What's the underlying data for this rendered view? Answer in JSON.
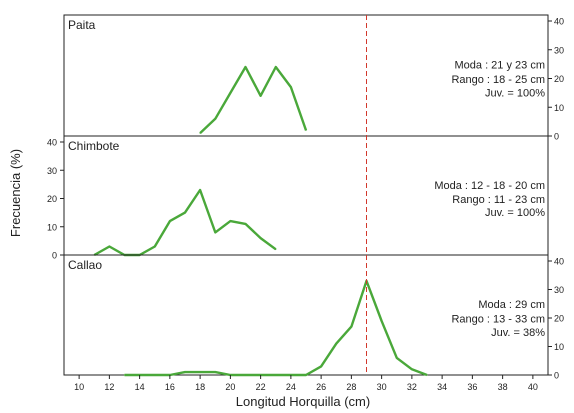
{
  "chart_data": [
    {
      "type": "line",
      "panel": "Paita",
      "x": [
        18,
        19,
        20,
        21,
        22,
        23,
        24,
        25
      ],
      "y": [
        1,
        6,
        15,
        24,
        14,
        24,
        17,
        2
      ],
      "annotations": [
        "Moda : 21 y 23 cm",
        "Rango : 18 - 25 cm",
        "Juv. = 100%"
      ],
      "yticks": [
        0,
        10,
        20,
        30,
        40
      ],
      "ylim": [
        0,
        40
      ],
      "y_axis_side": "right"
    },
    {
      "type": "line",
      "panel": "Chimbote",
      "x": [
        11,
        12,
        13,
        14,
        15,
        16,
        17,
        18,
        19,
        20,
        21,
        22,
        23
      ],
      "y": [
        0,
        3,
        0,
        0,
        3,
        12,
        15,
        23,
        8,
        12,
        11,
        6,
        2
      ],
      "annotations": [
        "Moda : 12 - 18 - 20 cm",
        "Rango : 11 - 23 cm",
        "Juv. = 100%"
      ],
      "yticks": [
        0,
        10,
        20,
        30,
        40
      ],
      "ylim": [
        0,
        40
      ],
      "y_axis_side": "left"
    },
    {
      "type": "line",
      "panel": "Callao",
      "x": [
        13,
        14,
        15,
        16,
        17,
        18,
        19,
        20,
        21,
        22,
        23,
        24,
        25,
        26,
        27,
        28,
        29,
        30,
        31,
        32,
        33
      ],
      "y": [
        0,
        0,
        0,
        0,
        1,
        1,
        1,
        0,
        0,
        0,
        0,
        0,
        0,
        3,
        11,
        17,
        33,
        19,
        6,
        2,
        0
      ],
      "annotations": [
        "Moda : 29 cm",
        "Rango : 13 - 33 cm",
        "Juv. = 38%"
      ],
      "yticks": [
        0,
        10,
        20,
        30,
        40
      ],
      "ylim": [
        0,
        40
      ],
      "y_axis_side": "right"
    }
  ],
  "x_axis": {
    "label": "Longitud Horquilla (cm)",
    "ticks": [
      10,
      12,
      14,
      16,
      18,
      20,
      22,
      24,
      26,
      28,
      30,
      32,
      34,
      36,
      38,
      40
    ],
    "xlim": [
      9,
      41
    ]
  },
  "y_axis_label": "Frecuencia (%)",
  "reference_line_x": 29,
  "colors": {
    "series": "#4aa83a",
    "reference": "#d2382c",
    "axis": "#222222"
  }
}
